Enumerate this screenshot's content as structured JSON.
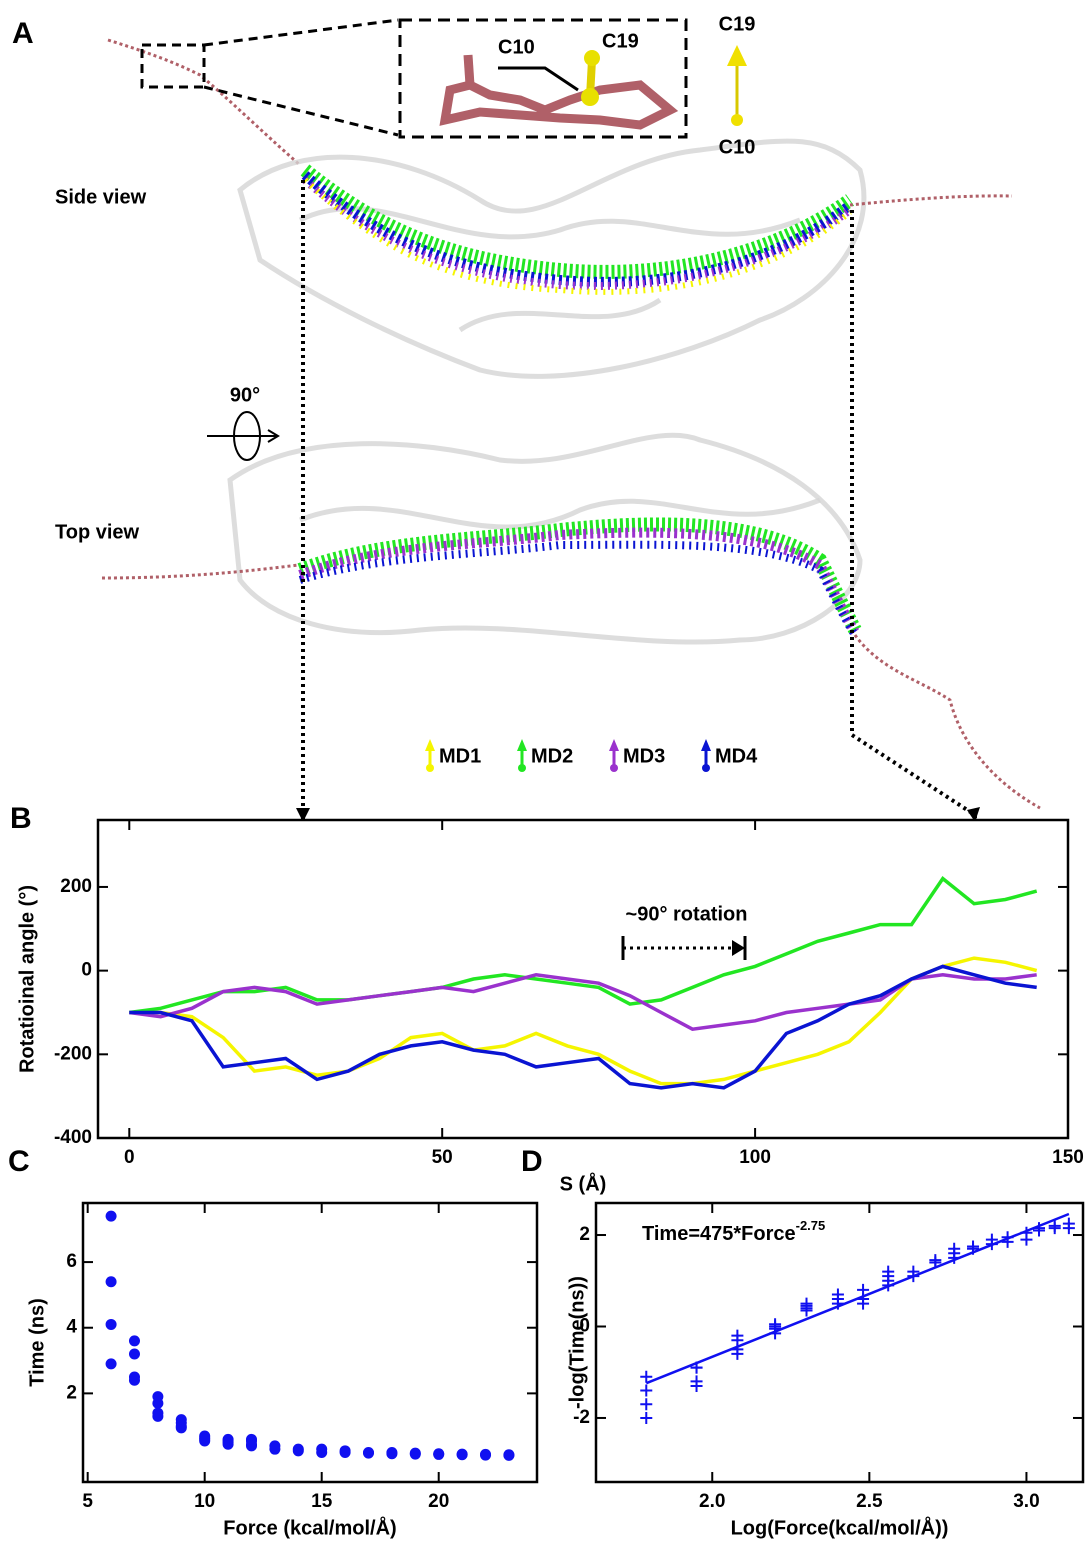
{
  "panel_a": {
    "label": "A",
    "inset_c10": "C10",
    "inset_c19": "C19",
    "axis_top": "C19",
    "axis_bottom": "C10",
    "side_view": "Side view",
    "top_view": "Top view",
    "rotation": "90°"
  },
  "chart_data": [
    {
      "type": "line",
      "panel_label": "B",
      "x_label": "S (Å)",
      "y_label": "Rotatioinal angle (°)",
      "annotation": "~90° rotation",
      "xlim": [
        -5,
        150
      ],
      "ylim": [
        -400,
        360
      ],
      "xticks": [
        0,
        50,
        100,
        150
      ],
      "yticks": [
        -400,
        -200,
        0,
        200
      ],
      "x": [
        0,
        5,
        10,
        15,
        20,
        25,
        30,
        35,
        40,
        45,
        50,
        55,
        60,
        65,
        70,
        75,
        80,
        85,
        90,
        95,
        100,
        105,
        110,
        115,
        120,
        125,
        130,
        135,
        140,
        145
      ],
      "series": [
        {
          "name": "MD1",
          "color": "#f5f500",
          "values": [
            -100,
            -100,
            -110,
            -160,
            -240,
            -230,
            -250,
            -240,
            -210,
            -160,
            -150,
            -190,
            -180,
            -150,
            -180,
            -200,
            -240,
            -270,
            -270,
            -260,
            -240,
            -220,
            -200,
            -170,
            -100,
            -20,
            10,
            30,
            20,
            0
          ]
        },
        {
          "name": "MD2",
          "color": "#22e622",
          "values": [
            -100,
            -90,
            -70,
            -50,
            -50,
            -40,
            -70,
            -70,
            -60,
            -50,
            -40,
            -20,
            -10,
            -20,
            -30,
            -40,
            -80,
            -70,
            -40,
            -10,
            10,
            40,
            70,
            90,
            110,
            110,
            220,
            160,
            170,
            190
          ]
        },
        {
          "name": "MD3",
          "color": "#9a32cd",
          "values": [
            -100,
            -110,
            -90,
            -50,
            -40,
            -50,
            -80,
            -70,
            -60,
            -50,
            -40,
            -50,
            -30,
            -10,
            -20,
            -30,
            -60,
            -100,
            -140,
            -130,
            -120,
            -100,
            -90,
            -80,
            -70,
            -20,
            -10,
            -20,
            -20,
            -10
          ]
        },
        {
          "name": "MD4",
          "color": "#0a14d2",
          "values": [
            -100,
            -100,
            -120,
            -230,
            -220,
            -210,
            -260,
            -240,
            -200,
            -180,
            -170,
            -190,
            -200,
            -230,
            -220,
            -210,
            -270,
            -280,
            -270,
            -280,
            -240,
            -150,
            -120,
            -80,
            -60,
            -20,
            10,
            -10,
            -30,
            -40
          ]
        }
      ]
    },
    {
      "type": "scatter",
      "panel_label": "C",
      "x_label": "Force (kcal/mol/Å)",
      "y_label": "Time (ns)",
      "xlim": [
        4.8,
        24.2
      ],
      "ylim": [
        -0.7,
        7.8
      ],
      "xticks": [
        5,
        10,
        15,
        20
      ],
      "yticks": [
        2,
        4,
        6
      ],
      "series": [
        {
          "color": "#1010f0",
          "marker": "circle",
          "x": [
            6,
            6,
            6,
            6,
            7,
            7,
            7,
            7,
            8,
            8,
            8,
            8,
            9,
            9,
            9,
            9,
            10,
            10,
            10,
            10,
            11,
            11,
            11,
            11,
            12,
            12,
            12,
            12,
            13,
            13,
            14,
            14,
            15,
            15,
            16,
            16,
            17,
            17,
            18,
            18,
            19,
            19,
            20,
            20,
            21,
            21,
            22,
            22,
            23,
            23
          ],
          "values": [
            7.4,
            5.4,
            4.1,
            2.9,
            3.6,
            3.2,
            2.5,
            2.4,
            1.9,
            1.7,
            1.4,
            1.3,
            1.2,
            1.1,
            1.0,
            0.95,
            0.7,
            0.65,
            0.6,
            0.55,
            0.6,
            0.55,
            0.5,
            0.45,
            0.6,
            0.55,
            0.45,
            0.4,
            0.4,
            0.3,
            0.3,
            0.25,
            0.3,
            0.2,
            0.25,
            0.2,
            0.2,
            0.18,
            0.2,
            0.16,
            0.18,
            0.15,
            0.16,
            0.14,
            0.15,
            0.13,
            0.14,
            0.12,
            0.13,
            0.11
          ]
        }
      ]
    },
    {
      "type": "scatter",
      "panel_label": "D",
      "x_label": "Log(Force(kcal/mol/Å))",
      "y_label": "-log(Time(ns))",
      "annotation": "Time=475*Force",
      "annotation_exponent": "-2.75",
      "xlim": [
        1.63,
        3.18
      ],
      "ylim": [
        -3.4,
        2.7
      ],
      "xticks": [
        {
          "value": 2,
          "label": "2.0"
        },
        2.5,
        {
          "value": 3,
          "label": "3.0"
        }
      ],
      "yticks": [
        -2,
        0,
        2
      ],
      "series": [
        {
          "color": "#1010f0",
          "marker": "plus",
          "x": [
            1.79,
            1.79,
            1.79,
            1.79,
            1.95,
            1.95,
            1.95,
            1.95,
            2.08,
            2.08,
            2.08,
            2.08,
            2.2,
            2.2,
            2.2,
            2.2,
            2.3,
            2.3,
            2.3,
            2.3,
            2.4,
            2.4,
            2.4,
            2.48,
            2.48,
            2.48,
            2.56,
            2.56,
            2.56,
            2.56,
            2.64,
            2.64,
            2.71,
            2.71,
            2.77,
            2.77,
            2.77,
            2.83,
            2.83,
            2.89,
            2.89,
            2.94,
            2.94,
            3.0,
            3.0,
            3.04,
            3.04,
            3.09,
            3.09,
            3.135,
            3.135
          ],
          "values": [
            -2.0,
            -1.7,
            -1.4,
            -1.1,
            -1.3,
            -1.2,
            -0.9,
            -0.9,
            -0.6,
            -0.5,
            -0.3,
            -0.2,
            -0.15,
            -0.05,
            0,
            0.05,
            0.35,
            0.4,
            0.45,
            0.5,
            0.5,
            0.6,
            0.7,
            0.5,
            0.6,
            0.8,
            0.9,
            1.0,
            1.1,
            1.2,
            1.1,
            1.2,
            1.4,
            1.45,
            1.5,
            1.6,
            1.7,
            1.7,
            1.75,
            1.8,
            1.9,
            1.85,
            1.95,
            1.9,
            2.05,
            2.1,
            2.15,
            2.15,
            2.2,
            2.15,
            2.25
          ]
        },
        {
          "color": "#1010f0",
          "marker": "line",
          "x": [
            1.79,
            3.135
          ],
          "values": [
            -1.24,
            2.46
          ]
        }
      ]
    }
  ]
}
